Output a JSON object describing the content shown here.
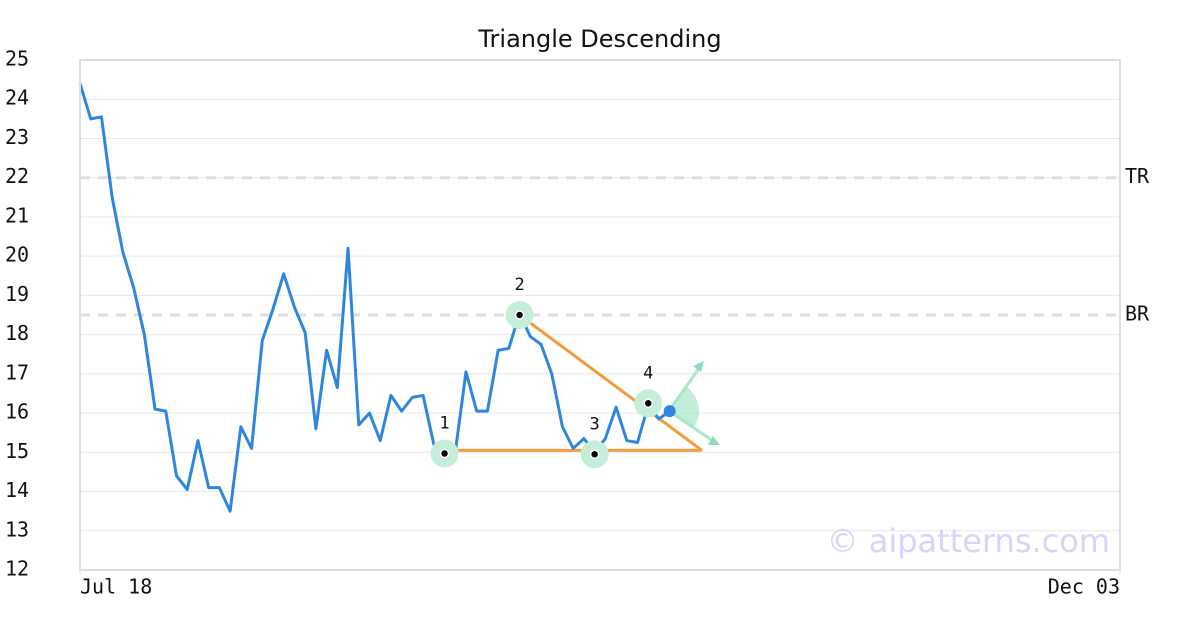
{
  "chart_data": {
    "type": "line",
    "title": "Triangle Descending",
    "x": [
      0,
      1,
      2,
      3,
      4,
      5,
      6,
      7,
      8,
      9,
      10,
      11,
      12,
      13,
      14,
      15,
      16,
      17,
      18,
      19,
      20,
      21,
      22,
      23,
      24,
      25,
      26,
      27,
      28,
      29,
      30,
      31,
      32,
      33,
      34,
      35,
      36,
      37,
      38,
      39,
      40,
      41,
      42,
      43,
      44,
      45,
      46,
      47,
      48,
      49,
      50,
      51,
      52,
      53,
      54,
      55
    ],
    "series": [
      {
        "color": "#2e86de",
        "values": [
          24.4,
          23.5,
          23.55,
          21.5,
          20.1,
          19.2,
          18.0,
          16.1,
          16.05,
          14.4,
          14.05,
          15.3,
          14.1,
          14.1,
          13.5,
          15.65,
          15.1,
          17.85,
          18.65,
          19.55,
          18.7,
          18.05,
          15.6,
          17.6,
          16.65,
          20.2,
          15.7,
          16.0,
          15.3,
          16.45,
          16.05,
          16.4,
          16.45,
          15.2,
          15.0,
          15.0,
          17.05,
          16.05,
          16.05,
          17.6,
          17.65,
          18.55,
          17.95,
          17.75,
          17.0,
          15.65,
          15.1,
          15.35,
          15.0,
          15.35,
          16.15,
          15.3,
          15.25,
          16.2,
          15.85,
          16.05
        ]
      }
    ],
    "xlim": [
      0,
      97
    ],
    "xticks": [
      {
        "value": 0,
        "label": "Jul 18"
      },
      {
        "value": 97,
        "label": "Dec 03"
      }
    ],
    "ylim": [
      12,
      25
    ],
    "yticks": [
      12,
      13,
      14,
      15,
      16,
      17,
      18,
      19,
      20,
      21,
      22,
      23,
      24,
      25
    ],
    "grid": true,
    "levels": [
      {
        "label": "TR",
        "value": 22
      },
      {
        "label": "BR",
        "value": 18.5
      }
    ],
    "points": [
      {
        "label": "1",
        "x": 34,
        "y": 14.97
      },
      {
        "label": "2",
        "x": 41,
        "y": 18.5
      },
      {
        "label": "3",
        "x": 48,
        "y": 14.95
      },
      {
        "label": "4",
        "x": 53,
        "y": 16.25
      }
    ],
    "triangle_color": "#f39c3d",
    "triangle": [
      {
        "x": [
          34.7,
          58
        ],
        "y": [
          15.05,
          15.05
        ]
      },
      {
        "x": [
          41,
          58
        ],
        "y": [
          18.5,
          15.05
        ]
      }
    ],
    "watermark": "© aipatterns.com"
  }
}
